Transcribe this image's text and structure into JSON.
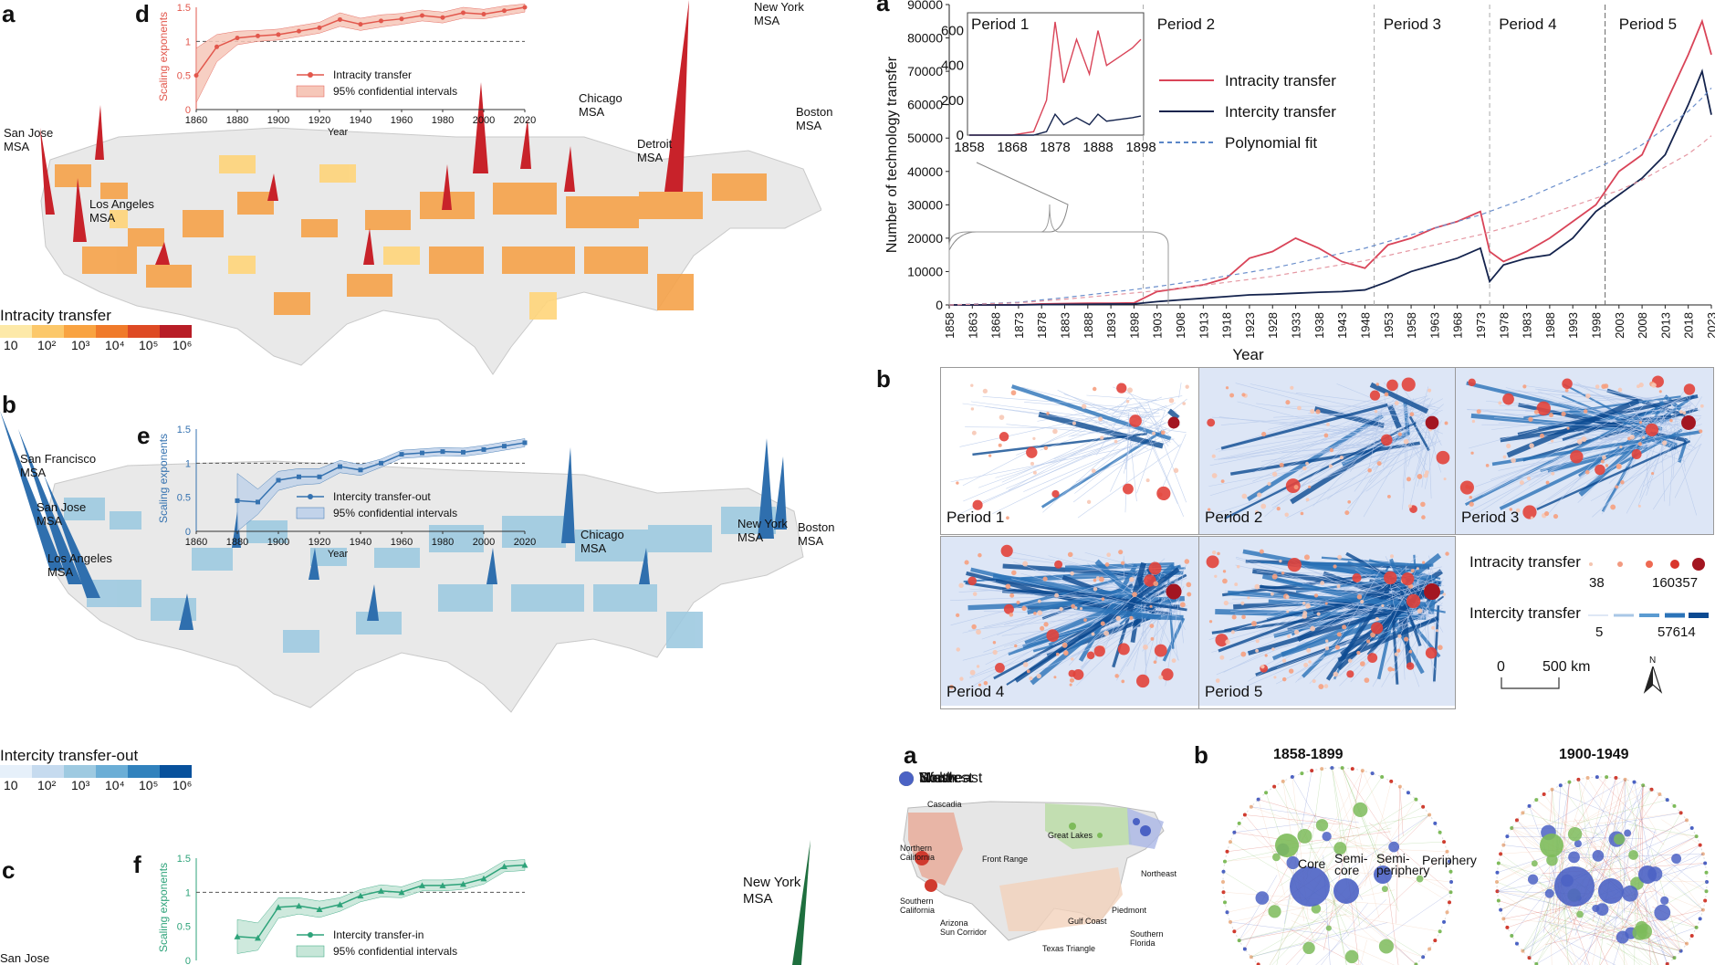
{
  "panel_labels": {
    "a_left": "a",
    "b_left": "b",
    "c_left": "c",
    "d": "d",
    "e": "e",
    "f": "f",
    "a_right": "a",
    "b_right": "b",
    "a_bottom": "a",
    "b_bottom": "b"
  },
  "map_a": {
    "legend_title": "Intracity transfer",
    "legend_ticks": [
      "10",
      "10²",
      "10³",
      "10⁴",
      "10⁵",
      "10⁶"
    ],
    "legend_colors": [
      "#fde9a8",
      "#fcc86a",
      "#f9a341",
      "#f07a2a",
      "#de4a24",
      "#b81d26"
    ],
    "msa_labels": [
      {
        "name": "san-jose",
        "text": "San Jose\nMSA"
      },
      {
        "name": "los-angeles",
        "text": "Los Angeles\nMSA"
      },
      {
        "name": "chicago",
        "text": "Chicago\nMSA"
      },
      {
        "name": "detroit",
        "text": "Detroit\nMSA"
      },
      {
        "name": "new-york",
        "text": "New York\nMSA"
      },
      {
        "name": "boston",
        "text": "Boston\nMSA"
      }
    ]
  },
  "map_b": {
    "legend_title": "Intercity transfer-out",
    "legend_ticks": [
      "10",
      "10²",
      "10³",
      "10⁴",
      "10⁵",
      "10⁶"
    ],
    "legend_colors": [
      "#e6f0fa",
      "#c6dbef",
      "#9ecae1",
      "#6baed6",
      "#3182bd",
      "#08519c"
    ],
    "msa_labels": [
      {
        "name": "san-francisco",
        "text": "San Francisco\nMSA"
      },
      {
        "name": "san-jose",
        "text": "San Jose\nMSA"
      },
      {
        "name": "los-angeles",
        "text": "Los Angeles\nMSA"
      },
      {
        "name": "chicago",
        "text": "Chicago\nMSA"
      },
      {
        "name": "new-york",
        "text": "New York\nMSA"
      },
      {
        "name": "boston",
        "text": "Boston\nMSA"
      }
    ]
  },
  "map_c": {
    "msa_labels": [
      {
        "name": "new-york",
        "text": "New York\nMSA"
      },
      {
        "name": "san-jose",
        "text": "San Jose"
      }
    ]
  },
  "inset_d": {
    "ylabel": "Scaling exponents",
    "xlabel": "Year",
    "yticks": [
      "0",
      "0.5",
      "1",
      "1.5"
    ],
    "xticks": [
      "1860",
      "1880",
      "1900",
      "1920",
      "1940",
      "1960",
      "1980",
      "2000",
      "2020"
    ],
    "legend_line": "Intracity transfer",
    "legend_band": "95% confidential intervals",
    "color": "#e2574c",
    "band": "#f6c7b9"
  },
  "inset_e": {
    "ylabel": "Scaling exponents",
    "xlabel": "Year",
    "yticks": [
      "0",
      "0.5",
      "1",
      "1.5"
    ],
    "xticks": [
      "1860",
      "1880",
      "1900",
      "1920",
      "1940",
      "1960",
      "1980",
      "2000",
      "2020"
    ],
    "legend_line": "Intercity transfer-out",
    "legend_band": "95% confidential intervals",
    "color": "#3572b0",
    "band": "#c2d3ea"
  },
  "inset_f": {
    "ylabel": "Scaling exponents",
    "yticks": [
      "0",
      "0.5",
      "1",
      "1.5"
    ],
    "legend_line": "Intercity transfer-in",
    "legend_band": "95% confidential intervals",
    "color": "#2ea37a",
    "band": "#c6e6d8"
  },
  "chart_data": [
    {
      "type": "line",
      "panel": "d",
      "x": [
        1860,
        1870,
        1880,
        1890,
        1900,
        1910,
        1920,
        1930,
        1940,
        1950,
        1960,
        1970,
        1980,
        1990,
        2000,
        2010,
        2020
      ],
      "series": [
        {
          "name": "Intracity transfer",
          "values": [
            0.5,
            0.92,
            1.05,
            1.08,
            1.1,
            1.15,
            1.2,
            1.32,
            1.25,
            1.3,
            1.33,
            1.38,
            1.35,
            1.42,
            1.4,
            1.45,
            1.5
          ]
        }
      ],
      "band_lower": [
        0.1,
        0.7,
        0.95,
        1.0,
        1.02,
        1.07,
        1.12,
        1.22,
        1.16,
        1.21,
        1.25,
        1.3,
        1.27,
        1.34,
        1.33,
        1.38,
        1.43
      ],
      "band_upper": [
        0.9,
        1.1,
        1.15,
        1.16,
        1.18,
        1.23,
        1.28,
        1.42,
        1.34,
        1.39,
        1.41,
        1.46,
        1.43,
        1.5,
        1.47,
        1.52,
        1.57
      ],
      "xlabel": "Year",
      "ylabel": "Scaling exponents",
      "ylim": [
        0,
        1.5
      ],
      "xlim": [
        1860,
        2020
      ]
    },
    {
      "type": "line",
      "panel": "e",
      "x": [
        1880,
        1890,
        1900,
        1910,
        1920,
        1930,
        1940,
        1950,
        1960,
        1970,
        1980,
        1990,
        2000,
        2010,
        2020
      ],
      "series": [
        {
          "name": "Intercity transfer-out",
          "values": [
            0.45,
            0.43,
            0.75,
            0.8,
            0.8,
            0.95,
            0.9,
            1.0,
            1.13,
            1.15,
            1.17,
            1.16,
            1.2,
            1.25,
            1.3
          ]
        }
      ],
      "band_lower": [
        0.0,
        0.25,
        0.6,
        0.68,
        0.7,
        0.86,
        0.82,
        0.94,
        1.07,
        1.09,
        1.11,
        1.1,
        1.14,
        1.19,
        1.24
      ],
      "band_upper": [
        0.85,
        0.62,
        0.88,
        0.92,
        0.92,
        1.04,
        0.98,
        1.06,
        1.19,
        1.21,
        1.23,
        1.22,
        1.26,
        1.31,
        1.36
      ],
      "xlabel": "Year",
      "ylabel": "Scaling exponents",
      "ylim": [
        0,
        1.5
      ],
      "xlim": [
        1860,
        2020
      ]
    },
    {
      "type": "line",
      "panel": "f",
      "x": [
        1880,
        1890,
        1900,
        1910,
        1920,
        1930,
        1940,
        1950,
        1960,
        1970,
        1980,
        1990,
        2000,
        2010,
        2020
      ],
      "series": [
        {
          "name": "Intercity transfer-in",
          "values": [
            0.35,
            0.33,
            0.78,
            0.8,
            0.75,
            0.82,
            0.95,
            1.02,
            1.0,
            1.1,
            1.1,
            1.12,
            1.2,
            1.38,
            1.4
          ]
        }
      ],
      "band_lower": [
        0.1,
        0.15,
        0.62,
        0.68,
        0.63,
        0.72,
        0.86,
        0.93,
        0.92,
        1.02,
        1.02,
        1.04,
        1.12,
        1.3,
        1.32
      ],
      "band_upper": [
        0.6,
        0.55,
        0.92,
        0.92,
        0.87,
        0.92,
        1.04,
        1.11,
        1.08,
        1.18,
        1.18,
        1.2,
        1.28,
        1.46,
        1.48
      ],
      "ylabel": "Scaling exponents",
      "ylim": [
        0,
        1.5
      ],
      "xlim": [
        1860,
        2020
      ]
    },
    {
      "type": "line",
      "panel": "a-right",
      "x": [
        1858,
        1873,
        1878,
        1883,
        1888,
        1893,
        1898,
        1903,
        1908,
        1913,
        1918,
        1923,
        1928,
        1933,
        1938,
        1943,
        1948,
        1953,
        1958,
        1963,
        1968,
        1973,
        1975,
        1978,
        1983,
        1988,
        1993,
        1998,
        2003,
        2008,
        2013,
        2018,
        2021,
        2023
      ],
      "series": [
        {
          "name": "Intracity transfer",
          "values": [
            0,
            0,
            300,
            400,
            500,
            500,
            600,
            4000,
            5000,
            6000,
            8000,
            14000,
            16000,
            20000,
            17000,
            13000,
            11000,
            18000,
            20000,
            23000,
            25000,
            28000,
            16000,
            13000,
            16000,
            20000,
            25000,
            30000,
            40000,
            45000,
            60000,
            75000,
            85000,
            75000
          ]
        },
        {
          "name": "Intercity transfer",
          "values": [
            0,
            0,
            100,
            150,
            200,
            250,
            300,
            1000,
            1500,
            2000,
            2500,
            3000,
            3200,
            3500,
            3800,
            4000,
            4500,
            7000,
            10000,
            12000,
            14000,
            17000,
            7000,
            12000,
            14000,
            15000,
            20000,
            28000,
            33000,
            38000,
            45000,
            60000,
            70000,
            57000
          ]
        },
        {
          "name": "Polynomial fit",
          "values": [
            0,
            800,
            1500,
            2200,
            3000,
            3800,
            4600,
            5500,
            6500,
            7500,
            8700,
            9800,
            11000,
            12500,
            14000,
            15500,
            17000,
            19000,
            21000,
            23000,
            25000,
            27000,
            28000,
            29500,
            32000,
            35000,
            38000,
            41000,
            44000,
            48000,
            53000,
            58000,
            62000,
            65000
          ]
        }
      ],
      "inset_x": [
        1858,
        1868,
        1873,
        1876,
        1878,
        1880,
        1883,
        1886,
        1888,
        1890,
        1893,
        1896,
        1898
      ],
      "inset_intracity": [
        0,
        0,
        20,
        200,
        650,
        300,
        550,
        350,
        600,
        400,
        450,
        500,
        550
      ],
      "inset_intercity": [
        0,
        0,
        0,
        20,
        120,
        60,
        100,
        60,
        120,
        80,
        90,
        100,
        110
      ],
      "xlabel": "Year",
      "ylabel": "Number of technology transfer",
      "ylim": [
        0,
        90000
      ],
      "xlim": [
        1858,
        2023
      ],
      "yticks": [
        "0",
        "10000",
        "20000",
        "30000",
        "40000",
        "50000",
        "60000",
        "70000",
        "80000",
        "90000"
      ],
      "xticks": [
        "1858",
        "1863",
        "1868",
        "1873",
        "1878",
        "1883",
        "1888",
        "1893",
        "1898",
        "1903",
        "1908",
        "1913",
        "1918",
        "1923",
        "1928",
        "1933",
        "1938",
        "1943",
        "1948",
        "1953",
        "1958",
        "1963",
        "1968",
        "1973",
        "1978",
        "1983",
        "1988",
        "1993",
        "1998",
        "2003",
        "2008",
        "2013",
        "2018",
        "2023"
      ],
      "inset_yticks": [
        "0",
        "200",
        "400",
        "600"
      ],
      "inset_xticks": [
        "1858",
        "1868",
        "1878",
        "1888",
        "1898"
      ],
      "period_labels": [
        "Period 1",
        "Period 2",
        "Period 3",
        "Period 4",
        "Period 5"
      ],
      "period_boundaries": [
        1900,
        1950,
        1975,
        2000
      ]
    }
  ],
  "line_legend": {
    "items": [
      {
        "label": "Intracity transfer",
        "color": "#d94458"
      },
      {
        "label": "Intercity transfer",
        "color": "#14234d"
      },
      {
        "label": "Polynomial fit",
        "color": "#5a86c7"
      }
    ]
  },
  "network_panel": {
    "periods": [
      "Period 1",
      "Period 2",
      "Period 3",
      "Period 4",
      "Period 5"
    ],
    "legend_intra": {
      "title": "Intracity transfer",
      "min": "38",
      "max": "160357"
    },
    "legend_inter": {
      "title": "Intercity transfer",
      "min": "5",
      "max": "57614"
    },
    "scale": {
      "zero": "0",
      "dist": "500 km"
    },
    "north": "N"
  },
  "region_legend": {
    "items": [
      {
        "label": "West",
        "color": "#d03a2e"
      },
      {
        "label": "South",
        "color": "#ecb58f"
      },
      {
        "label": "Midwest",
        "color": "#7dbb5a"
      },
      {
        "label": "Northeast",
        "color": "#4b62c4"
      }
    ],
    "region_labels": [
      "Cascadia",
      "Northern\nCalifornia",
      "Front Range",
      "Great Lakes",
      "Northeast",
      "Southern\nCalifornia",
      "Arizona\nSun Corridor",
      "Piedmont",
      "Gulf Coast",
      "Southern\nFlorida",
      "Texas Triangle"
    ]
  },
  "core_periphery": {
    "titles": [
      "1858-1899",
      "1900-1949"
    ],
    "labels": [
      "Core",
      "Semi-\ncore",
      "Semi-\nperiphery",
      "Periphery"
    ]
  }
}
